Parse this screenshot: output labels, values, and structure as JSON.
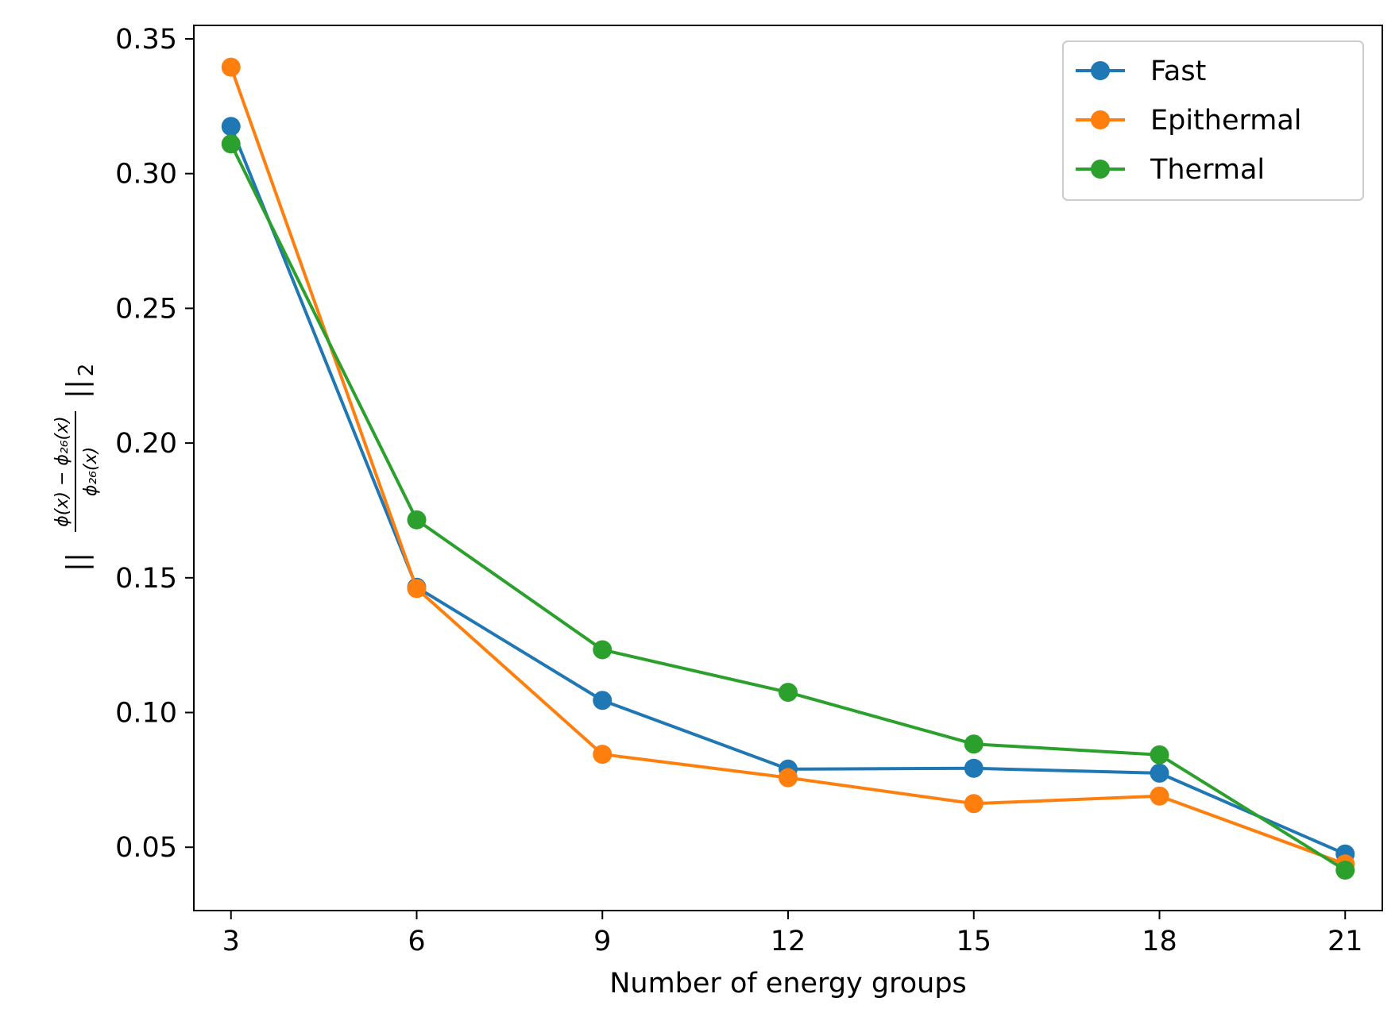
{
  "chart_data": {
    "type": "line",
    "title": "",
    "xlabel": "Number of energy groups",
    "ylabel": "||(φ(x) − φ26(x)) / φ26(x)||2",
    "x": [
      3,
      6,
      9,
      12,
      15,
      18,
      21
    ],
    "xlim": [
      2.4,
      21.6
    ],
    "ylim": [
      0.0265,
      0.355
    ],
    "xticks": [
      3,
      6,
      9,
      12,
      15,
      18,
      21
    ],
    "xtick_labels": [
      "3",
      "6",
      "9",
      "12",
      "15",
      "18",
      "21"
    ],
    "yticks": [
      0.05,
      0.1,
      0.15,
      0.2,
      0.25,
      0.3,
      0.35
    ],
    "ytick_labels": [
      "0.05",
      "0.10",
      "0.15",
      "0.20",
      "0.25",
      "0.30",
      "0.35"
    ],
    "grid": false,
    "legend_position": "top-right",
    "series": [
      {
        "name": "Fast",
        "color": "#1f77b4",
        "marker": "circle",
        "values": [
          0.3175,
          0.1465,
          0.1045,
          0.079,
          0.0793,
          0.0775,
          0.0475
        ]
      },
      {
        "name": "Epithermal",
        "color": "#ff7f0e",
        "marker": "circle",
        "values": [
          0.3395,
          0.146,
          0.0845,
          0.0758,
          0.0662,
          0.069,
          0.0438
        ]
      },
      {
        "name": "Thermal",
        "color": "#2ca02c",
        "marker": "circle",
        "values": [
          0.311,
          0.1715,
          0.1233,
          0.1075,
          0.0883,
          0.0843,
          0.0415
        ]
      }
    ]
  }
}
